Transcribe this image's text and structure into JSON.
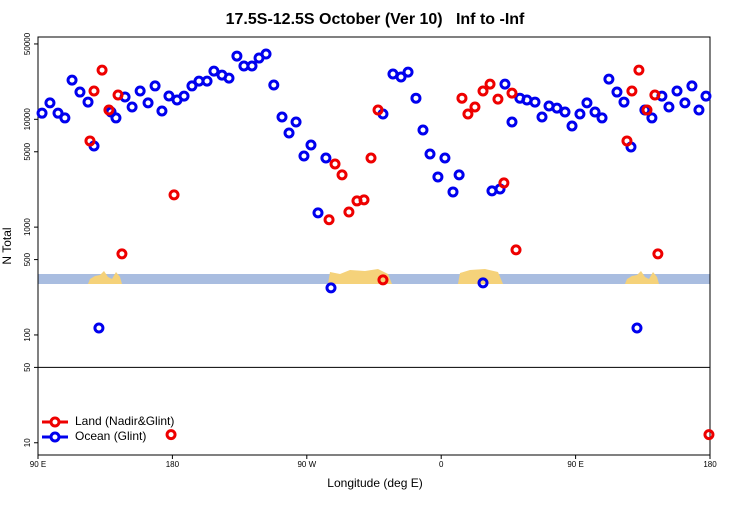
{
  "chart_data": {
    "type": "scatter",
    "title": "17.5S-12.5S October (Ver 10)   Inf to -Inf",
    "xlabel": "Longitude (deg E)",
    "ylabel": "N Total",
    "log_y": true,
    "xlim": [
      90,
      540
    ],
    "xticks": [
      {
        "value": 90,
        "label": "90 E"
      },
      180,
      {
        "value": 270,
        "label": "90 W"
      },
      {
        "value": 360,
        "label": "0"
      },
      {
        "value": 450,
        "label": "90 E"
      },
      {
        "value": 540,
        "label": "180"
      }
    ],
    "ylim": [
      7.7,
      58000
    ],
    "yticks": [
      10,
      50,
      100,
      500,
      1000,
      5000,
      10000,
      50000
    ],
    "hline": 50,
    "legend": "lower left",
    "series": [
      {
        "name": "Ocean (Glint)",
        "color": "#0000ee",
        "x": [
          92.7,
          98,
          103.4,
          108,
          112.8,
          118.1,
          123.5,
          127.5,
          130.8,
          138.9,
          142.2,
          148.3,
          153,
          158.4,
          163.7,
          168.4,
          173,
          177.7,
          183.1,
          187.8,
          193.1,
          197.8,
          203.2,
          207.8,
          213.2,
          217.9,
          223.2,
          227.9,
          233.3,
          238,
          242.7,
          247.9,
          253.4,
          258.1,
          262.8,
          268.1,
          272.8,
          277.5,
          282.8,
          286.2,
          321,
          327.7,
          333.1,
          337.8,
          343.1,
          347.8,
          352.5,
          362.5,
          357.8,
          367.9,
          372,
          388,
          394,
          399.4,
          402.7,
          407.4,
          412.7,
          417.4,
          422.8,
          427.5,
          432.2,
          437.5,
          442.9,
          447.6,
          452.9,
          457.6,
          463,
          467.7,
          472.3,
          477.7,
          482.4,
          487.1,
          491.1,
          496.4,
          501.1,
          507.8,
          512.5,
          517.9,
          523.2,
          527.9,
          532.6,
          537.3
        ],
        "values": [
          11400,
          14200,
          11400,
          10300,
          23100,
          17900,
          14450,
          5660,
          116,
          11690,
          10300,
          16100,
          13000,
          18300,
          14200,
          20400,
          11940,
          16440,
          15100,
          16400,
          20400,
          22600,
          22600,
          28000,
          25700,
          24100,
          38600,
          31200,
          31200,
          37000,
          40300,
          20800,
          10500,
          7460,
          9440,
          4570,
          5780,
          1355,
          4380,
          273,
          11200,
          26300,
          24700,
          27400,
          15700,
          7960,
          4770,
          4380,
          2920,
          2120,
          3050,
          304,
          2170,
          2260,
          21200,
          9440,
          15700,
          15100,
          14450,
          10500,
          13300,
          12700,
          11690,
          8670,
          11200,
          14200,
          11690,
          10300,
          23600,
          17900,
          14450,
          5540,
          116,
          12200,
          10300,
          16400,
          13000,
          18300,
          14200,
          20400,
          12200,
          16400
        ]
      },
      {
        "name": "Land (Nadir&Glint)",
        "color": "#ee0000",
        "x": [
          124.8,
          127.5,
          132.9,
          137.5,
          143.6,
          146.2,
          181.1,
          284.9,
          288.9,
          293.6,
          298.2,
          303.6,
          308.3,
          313,
          317.7,
          321,
          373.9,
          377.9,
          382.6,
          388,
          392.7,
          398,
          402,
          407.4,
          410.1,
          484.4,
          487.7,
          492.4,
          497.8,
          503.1,
          505.1,
          179.1,
          539.3
        ],
        "values": [
          6300,
          18300,
          28600,
          12200,
          16800,
          565,
          1990,
          1170,
          3850,
          3050,
          1380,
          1750,
          1790,
          4380,
          12200,
          324,
          15700,
          11200,
          13000,
          18300,
          21200,
          15400,
          2570,
          17500,
          615,
          6300,
          18300,
          28600,
          12200,
          16800,
          565,
          11.9,
          11.9
        ]
      }
    ]
  }
}
